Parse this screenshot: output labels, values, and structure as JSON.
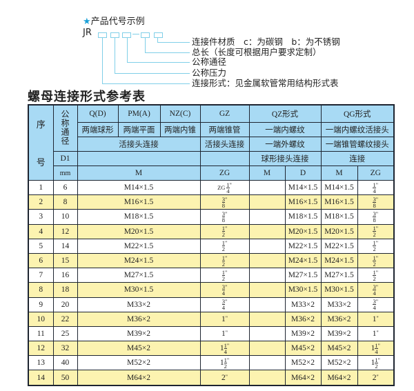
{
  "code_example": {
    "title": "产品代号示例",
    "star_icon": "star-icon",
    "prefix": "JR",
    "labels": [
      "连接件材质　c：为碳钢　b：为不锈钢",
      "总长（长度可根据用户要求定制）",
      "公称通径",
      "公称压力",
      "连接形式：见金属软管常用结构形式表"
    ]
  },
  "table_title": "螺母连接形式参考表",
  "colors": {
    "header_bg": "#a8daf4",
    "alt_row_bg": "#fcf3b0",
    "border": "#1d2430",
    "accent": "#1aa0d8"
  },
  "header": {
    "seq": "序",
    "seq2": "号",
    "nominal_bore": "公称通径",
    "types": [
      "Q(D)",
      "PM(A)",
      "NZ(C)",
      "GZ",
      "QZ形式",
      "QG形式"
    ],
    "descs": [
      "两端球形",
      "两端平面",
      "两端内锥",
      "两端锥管",
      "一端内螺纹",
      "一端内螺纹活接头"
    ],
    "conn": [
      "活接头连接",
      "活接头连接",
      "一端外螺纹",
      "一端锥管螺纹接头"
    ],
    "d1": "D1",
    "conn2": [
      "球形接头连接",
      "连接"
    ],
    "unit": "mm",
    "thread_cols": [
      "M",
      "ZG",
      "M",
      "D",
      "M",
      "ZG"
    ]
  },
  "rows": [
    {
      "no": "1",
      "dn": "6",
      "m": "M14×1.5",
      "gz": {
        "pre": "ZG",
        "w": "",
        "n": "1",
        "d": "4"
      },
      "qz_m": "",
      "qz_d": "M14×1.5",
      "qg_m": "M14×1.5",
      "qg_zg": {
        "w": "",
        "n": "1",
        "d": "4"
      }
    },
    {
      "no": "2",
      "dn": "8",
      "m": "M16×1.5",
      "gz": {
        "w": "",
        "n": "3",
        "d": "8"
      },
      "qz_m": "",
      "qz_d": "M16×1.5",
      "qg_m": "M16×1.5",
      "qg_zg": {
        "w": "",
        "n": "3",
        "d": "8"
      }
    },
    {
      "no": "3",
      "dn": "10",
      "m": "M18×1.5",
      "gz": {
        "w": "",
        "n": "3",
        "d": "8"
      },
      "qz_m": "",
      "qz_d": "M18×1.5",
      "qg_m": "M18×1.5",
      "qg_zg": {
        "w": "",
        "n": "3",
        "d": "8"
      }
    },
    {
      "no": "4",
      "dn": "12",
      "m": "M20×1.5",
      "gz": {
        "w": "",
        "n": "1",
        "d": "2"
      },
      "qz_m": "",
      "qz_d": "M20×1.5",
      "qg_m": "M20×1.5",
      "qg_zg": {
        "w": "",
        "n": "1",
        "d": "2"
      }
    },
    {
      "no": "5",
      "dn": "14",
      "m": "M22×1.5",
      "gz": {
        "w": "",
        "n": "1",
        "d": "2"
      },
      "qz_m": "",
      "qz_d": "M22×1.5",
      "qg_m": "M22×1.5",
      "qg_zg": {
        "w": "",
        "n": "1",
        "d": "2"
      }
    },
    {
      "no": "6",
      "dn": "15",
      "m": "M24×1.5",
      "gz": {
        "w": "",
        "n": "1",
        "d": "2"
      },
      "qz_m": "",
      "qz_d": "M24×1.5",
      "qg_m": "M24×1.5",
      "qg_zg": {
        "w": "",
        "n": "1",
        "d": "2"
      }
    },
    {
      "no": "7",
      "dn": "16",
      "m": "M27×1.5",
      "gz": {
        "w": "",
        "n": "1",
        "d": "2"
      },
      "qz_m": "",
      "qz_d": "M27×1.5",
      "qg_m": "M27×1.5",
      "qg_zg": {
        "w": "",
        "n": "1",
        "d": "2"
      }
    },
    {
      "no": "8",
      "dn": "18",
      "m": "M30×1.5",
      "gz": {
        "w": "",
        "n": "3",
        "d": "4"
      },
      "qz_m": "",
      "qz_d": "M30×1.5",
      "qg_m": "M30×1.5",
      "qg_zg": {
        "w": "",
        "n": "3",
        "d": "4"
      }
    },
    {
      "no": "9",
      "dn": "20",
      "m": "M33×2",
      "gz": {
        "w": "",
        "n": "3",
        "d": "4"
      },
      "qz_m": "",
      "qz_d": "M33×2",
      "qg_m": "M33×2",
      "qg_zg": {
        "w": "",
        "n": "3",
        "d": "4"
      }
    },
    {
      "no": "10",
      "dn": "22",
      "m": "M36×2",
      "gz": {
        "w": "1"
      },
      "qz_m": "",
      "qz_d": "M36×2",
      "qg_m": "M36×2",
      "qg_zg": {
        "w": "1"
      }
    },
    {
      "no": "11",
      "dn": "25",
      "m": "M39×2",
      "gz": {
        "w": "1"
      },
      "qz_m": "",
      "qz_d": "M39×2",
      "qg_m": "M39×2",
      "qg_zg": {
        "w": "1"
      }
    },
    {
      "no": "12",
      "dn": "32",
      "m": "M45×2",
      "gz": {
        "w": "1",
        "n": "1",
        "d": "4"
      },
      "qz_m": "",
      "qz_d": "M45×2",
      "qg_m": "M45×2",
      "qg_zg": {
        "w": "1",
        "n": "1",
        "d": "4"
      }
    },
    {
      "no": "13",
      "dn": "40",
      "m": "M52×2",
      "gz": {
        "w": "1",
        "n": "1",
        "d": "2"
      },
      "qz_m": "",
      "qz_d": "M52×2",
      "qg_m": "M52×2",
      "qg_zg": {
        "w": "1",
        "n": "1",
        "d": "2"
      }
    },
    {
      "no": "14",
      "dn": "50",
      "m": "M64×2",
      "gz": {
        "w": "2"
      },
      "qz_m": "",
      "qz_d": "M64×2",
      "qg_m": "M64×2",
      "qg_zg": {
        "w": "2"
      }
    }
  ],
  "inch_mark": "\""
}
